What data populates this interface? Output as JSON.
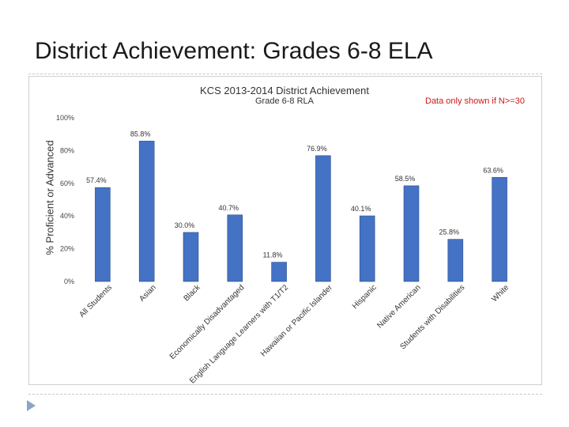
{
  "slide": {
    "title": "District Achievement: Grades 6-8 ELA"
  },
  "chart_data": {
    "type": "bar",
    "title": "KCS 2013-2014 District Achievement",
    "subtitle": "Grade 6-8 RLA",
    "note": "Data only shown if N>=30",
    "ylabel": "% Proficient or Advanced",
    "xlabel": "",
    "ylim": [
      0,
      100
    ],
    "yticks": [
      "0%",
      "20%",
      "40%",
      "60%",
      "80%",
      "100%"
    ],
    "grid": false,
    "legend": "none",
    "bar_color": "#4472c4",
    "categories": [
      "All Students",
      "Asian",
      "Black",
      "Economically Disadvantaged",
      "English Language Learners with T1/T2",
      "Hawaiian or Pacific Islander",
      "Hispanic",
      "Native American",
      "Students with Disabilities",
      "White"
    ],
    "values": [
      57.4,
      85.8,
      30.0,
      40.7,
      11.8,
      76.9,
      40.1,
      58.5,
      25.8,
      63.6
    ],
    "data_labels": [
      "57.4%",
      "85.8%",
      "30.0%",
      "40.7%",
      "11.8%",
      "76.9%",
      "40.1%",
      "58.5%",
      "25.8%",
      "63.6%"
    ]
  }
}
